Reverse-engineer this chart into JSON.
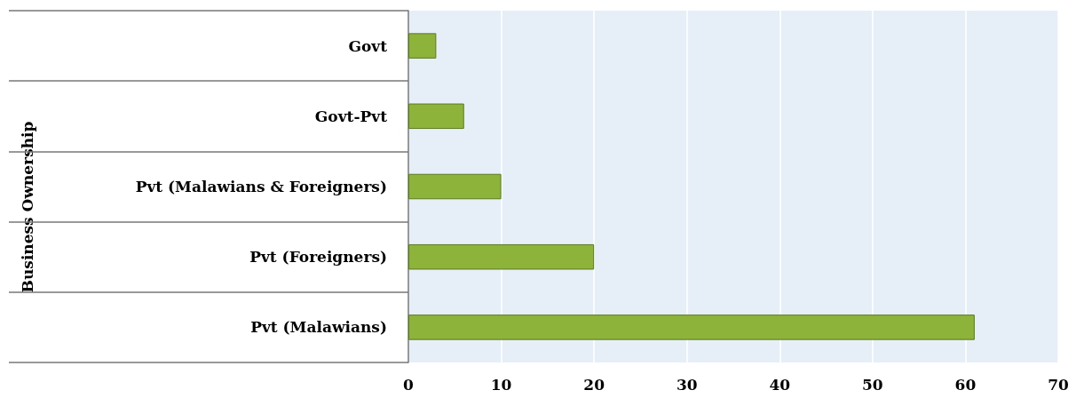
{
  "chart_data": {
    "type": "bar",
    "orientation": "horizontal",
    "annotations": [
      "Business Ownership"
    ],
    "categories": [
      "Govt",
      "Govt-Pvt",
      "Pvt (Malawians & Foreigners)",
      "Pvt (Foreigners)",
      "Pvt (Malawians)"
    ],
    "values": [
      3,
      6,
      10,
      20,
      61
    ],
    "color": "#8db33a",
    "xlim": [
      0,
      70
    ],
    "xticks": [
      0,
      10,
      20,
      30,
      40,
      50,
      60,
      70
    ],
    "grid": "x"
  }
}
